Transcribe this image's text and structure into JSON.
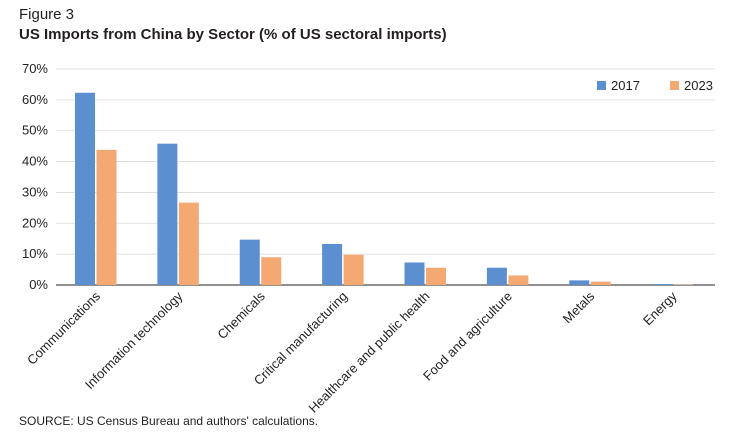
{
  "figure_label": "Figure 3",
  "chart_data": {
    "type": "bar",
    "title": "US Imports from China by Sector (% of US sectoral imports)",
    "categories": [
      "Communications",
      "Information technology",
      "Chemicals",
      "Critical manufacturing",
      "Healthcare and public health",
      "Food and agriculture",
      "Metals",
      "Energy"
    ],
    "series": [
      {
        "name": "2017",
        "color": "#5b8fcf",
        "values": [
          62.3,
          45.8,
          14.7,
          13.3,
          7.3,
          5.6,
          1.5,
          0.3
        ]
      },
      {
        "name": "2023",
        "color": "#f4a973",
        "values": [
          43.8,
          26.7,
          9.0,
          9.8,
          5.6,
          3.1,
          1.1,
          0.1
        ]
      }
    ],
    "y_tick_labels": [
      "0%",
      "10%",
      "20%",
      "30%",
      "40%",
      "50%",
      "60%",
      "70%"
    ],
    "ylim": [
      0,
      70
    ],
    "xlabel": "",
    "ylabel": "",
    "grid": true,
    "legend_position": "top-right"
  },
  "source": "SOURCE: US Census Bureau and authors' calculations."
}
